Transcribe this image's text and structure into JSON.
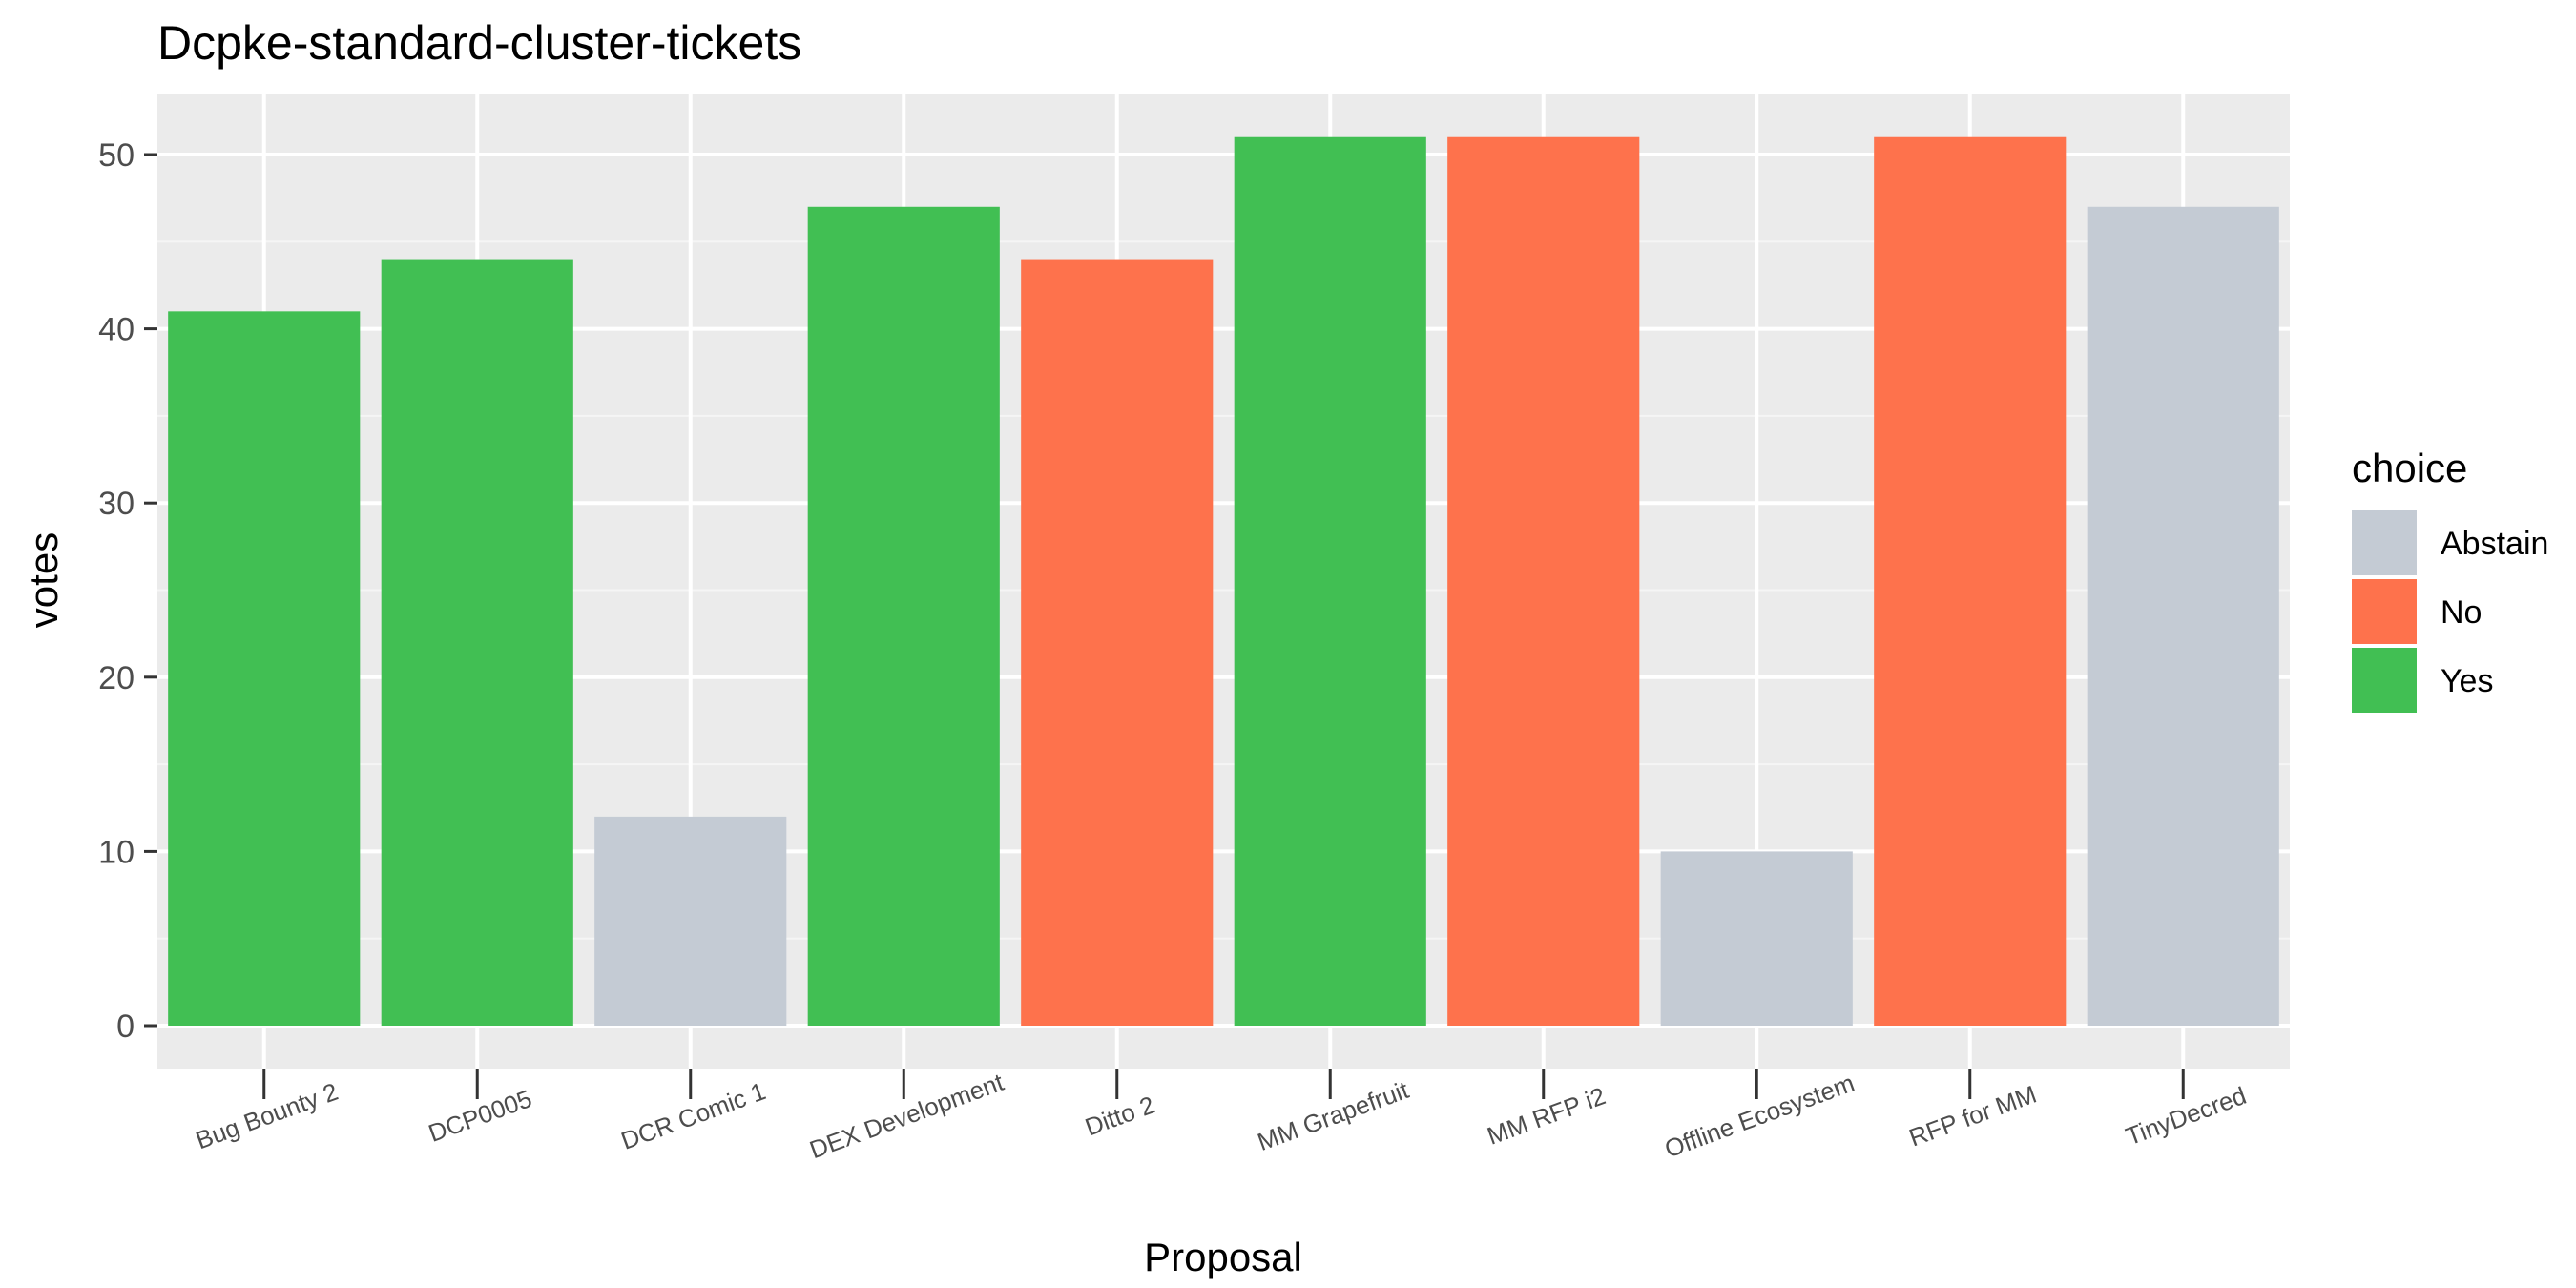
{
  "chart_data": {
    "type": "bar",
    "title": "Dcpke-standard-cluster-tickets",
    "xlabel": "Proposal",
    "ylabel": "votes",
    "ylim": [
      0,
      53
    ],
    "yticks": [
      0,
      10,
      20,
      30,
      40,
      50
    ],
    "grid": true,
    "legend": {
      "title": "choice",
      "placement": "right",
      "entries": [
        {
          "label": "Abstain",
          "color": "#c4cbd4"
        },
        {
          "label": "No",
          "color": "#fe724c"
        },
        {
          "label": "Yes",
          "color": "#41bf53"
        }
      ]
    },
    "categories": [
      "Bug Bounty 2",
      "DCP0005",
      "DCR Comic 1",
      "DEX Development",
      "Ditto 2",
      "MM Grapefruit",
      "MM RFP i2",
      "Offline Ecosystem",
      "RFP for MM",
      "TinyDecred"
    ],
    "values": [
      41,
      44,
      12,
      47,
      44,
      51,
      51,
      10,
      51,
      47
    ],
    "choices": [
      "Yes",
      "Yes",
      "Abstain",
      "Yes",
      "No",
      "Yes",
      "No",
      "Abstain",
      "No",
      "Abstain"
    ]
  }
}
